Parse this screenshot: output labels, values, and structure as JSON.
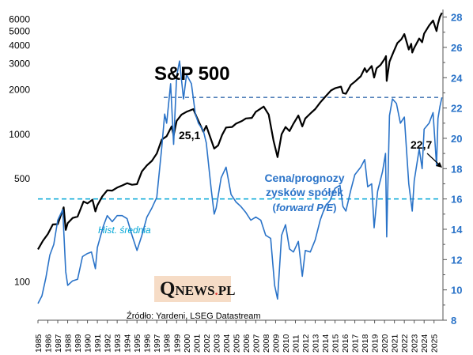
{
  "chart_data": {
    "type": "line",
    "title": "S&P 500",
    "source": "Źródło: Yardeni, LSEG Datastream",
    "logo": {
      "q": "Q",
      "rest": "NEWS",
      "dot": ".",
      "tld": "PL"
    },
    "x_ticks": [
      "1985",
      "1986",
      "1987",
      "1988",
      "1989",
      "1990",
      "1991",
      "1992",
      "1993",
      "1994",
      "1995",
      "1996",
      "1997",
      "1998",
      "1999",
      "2000",
      "2001",
      "2002",
      "2003",
      "2004",
      "2005",
      "2006",
      "2007",
      "2008",
      "2009",
      "2010",
      "2011",
      "2012",
      "2013",
      "2014",
      "2015",
      "2016",
      "2017",
      "2018",
      "2019",
      "2020",
      "2021",
      "2022",
      "2023",
      "2024",
      "2025"
    ],
    "xlim": [
      1985,
      2025.9
    ],
    "left_axis": {
      "scale": "log",
      "ticks": [
        "100",
        "500",
        "1000",
        "2000",
        "3000",
        "4000",
        "5000",
        "6000"
      ],
      "tick_values": [
        100,
        500,
        1000,
        2000,
        3000,
        4000,
        5000,
        6000
      ],
      "ylim": [
        55,
        7000
      ]
    },
    "right_axis": {
      "scale": "linear",
      "ticks": [
        "8",
        "10",
        "12",
        "14",
        "16",
        "18",
        "20",
        "22",
        "24",
        "26",
        "28"
      ],
      "tick_values": [
        8,
        10,
        12,
        14,
        16,
        18,
        20,
        22,
        24,
        26,
        28
      ],
      "ylim": [
        8,
        28.5
      ]
    },
    "series": [
      {
        "name": "S&P 500",
        "axis": "left",
        "color": "#000000",
        "points": [
          [
            1985.0,
            166
          ],
          [
            1985.5,
            190
          ],
          [
            1986.0,
            211
          ],
          [
            1986.5,
            245
          ],
          [
            1987.0,
            246
          ],
          [
            1987.6,
            320
          ],
          [
            1987.8,
            225
          ],
          [
            1988.0,
            250
          ],
          [
            1988.5,
            271
          ],
          [
            1989.0,
            277
          ],
          [
            1989.6,
            350
          ],
          [
            1990.0,
            340
          ],
          [
            1990.5,
            360
          ],
          [
            1990.8,
            300
          ],
          [
            1991.0,
            330
          ],
          [
            1991.5,
            380
          ],
          [
            1992.0,
            417
          ],
          [
            1992.5,
            415
          ],
          [
            1993.0,
            435
          ],
          [
            1993.5,
            450
          ],
          [
            1994.0,
            466
          ],
          [
            1994.5,
            455
          ],
          [
            1995.0,
            459
          ],
          [
            1995.5,
            560
          ],
          [
            1996.0,
            615
          ],
          [
            1996.5,
            660
          ],
          [
            1997.0,
            740
          ],
          [
            1997.5,
            920
          ],
          [
            1998.0,
            970
          ],
          [
            1998.5,
            1130
          ],
          [
            1998.7,
            980
          ],
          [
            1999.0,
            1230
          ],
          [
            1999.5,
            1360
          ],
          [
            2000.0,
            1420
          ],
          [
            2000.7,
            1480
          ],
          [
            2001.0,
            1320
          ],
          [
            2001.7,
            1040
          ],
          [
            2002.0,
            1140
          ],
          [
            2002.8,
            800
          ],
          [
            2003.2,
            840
          ],
          [
            2003.6,
            990
          ],
          [
            2004.0,
            1110
          ],
          [
            2004.6,
            1120
          ],
          [
            2005.0,
            1180
          ],
          [
            2005.6,
            1230
          ],
          [
            2006.0,
            1280
          ],
          [
            2006.6,
            1290
          ],
          [
            2007.0,
            1420
          ],
          [
            2007.8,
            1540
          ],
          [
            2008.3,
            1360
          ],
          [
            2008.8,
            900
          ],
          [
            2009.2,
            700
          ],
          [
            2009.6,
            1000
          ],
          [
            2010.0,
            1120
          ],
          [
            2010.4,
            1050
          ],
          [
            2010.8,
            1180
          ],
          [
            2011.3,
            1340
          ],
          [
            2011.7,
            1130
          ],
          [
            2012.0,
            1280
          ],
          [
            2012.6,
            1400
          ],
          [
            2013.0,
            1480
          ],
          [
            2013.5,
            1640
          ],
          [
            2014.0,
            1790
          ],
          [
            2014.6,
            1980
          ],
          [
            2015.0,
            2050
          ],
          [
            2015.6,
            2100
          ],
          [
            2015.8,
            1900
          ],
          [
            2016.1,
            1880
          ],
          [
            2016.6,
            2160
          ],
          [
            2017.0,
            2270
          ],
          [
            2017.6,
            2470
          ],
          [
            2018.0,
            2800
          ],
          [
            2018.2,
            2640
          ],
          [
            2018.7,
            2900
          ],
          [
            2018.95,
            2420
          ],
          [
            2019.2,
            2800
          ],
          [
            2019.6,
            2950
          ],
          [
            2020.0,
            3230
          ],
          [
            2020.15,
            3380
          ],
          [
            2020.22,
            2300
          ],
          [
            2020.5,
            3100
          ],
          [
            2020.9,
            3600
          ],
          [
            2021.3,
            4150
          ],
          [
            2021.7,
            4400
          ],
          [
            2022.0,
            4770
          ],
          [
            2022.45,
            3750
          ],
          [
            2022.7,
            4100
          ],
          [
            2022.8,
            3580
          ],
          [
            2023.0,
            3850
          ],
          [
            2023.5,
            4450
          ],
          [
            2023.8,
            4200
          ],
          [
            2024.0,
            4800
          ],
          [
            2024.5,
            5450
          ],
          [
            2024.9,
            5900
          ],
          [
            2025.25,
            5000
          ],
          [
            2025.4,
            5600
          ],
          [
            2025.6,
            6250
          ],
          [
            2025.8,
            6650
          ]
        ]
      },
      {
        "name": "Cena/prognozy zysków spółek (forward P/E)",
        "axis": "right",
        "color": "#2a73c8",
        "points": [
          [
            1985.0,
            9.1
          ],
          [
            1985.4,
            9.6
          ],
          [
            1985.8,
            10.8
          ],
          [
            1986.2,
            12.3
          ],
          [
            1986.6,
            13.0
          ],
          [
            1987.0,
            14.6
          ],
          [
            1987.5,
            15.3
          ],
          [
            1987.8,
            11.2
          ],
          [
            1988.0,
            10.3
          ],
          [
            1988.5,
            10.6
          ],
          [
            1989.0,
            10.7
          ],
          [
            1989.5,
            12.2
          ],
          [
            1990.0,
            12.4
          ],
          [
            1990.4,
            12.5
          ],
          [
            1990.8,
            11.4
          ],
          [
            1991.0,
            12.8
          ],
          [
            1991.6,
            14.2
          ],
          [
            1992.0,
            14.9
          ],
          [
            1992.5,
            14.5
          ],
          [
            1993.0,
            14.9
          ],
          [
            1993.5,
            14.9
          ],
          [
            1994.0,
            14.7
          ],
          [
            1994.5,
            13.6
          ],
          [
            1995.0,
            12.6
          ],
          [
            1995.5,
            13.6
          ],
          [
            1996.0,
            14.8
          ],
          [
            1996.5,
            15.4
          ],
          [
            1997.0,
            16.1
          ],
          [
            1997.5,
            19.4
          ],
          [
            1997.8,
            21.6
          ],
          [
            1998.0,
            21.0
          ],
          [
            1998.4,
            23.6
          ],
          [
            1998.7,
            19.6
          ],
          [
            1999.0,
            24.1
          ],
          [
            1999.3,
            25.1
          ],
          [
            1999.7,
            22.6
          ],
          [
            2000.0,
            24.2
          ],
          [
            2000.5,
            23.6
          ],
          [
            2000.9,
            21.6
          ],
          [
            2001.2,
            21.0
          ],
          [
            2001.7,
            20.5
          ],
          [
            2002.0,
            19.7
          ],
          [
            2002.5,
            16.6
          ],
          [
            2002.8,
            15.0
          ],
          [
            2003.0,
            15.4
          ],
          [
            2003.5,
            17.4
          ],
          [
            2004.0,
            18.1
          ],
          [
            2004.5,
            16.3
          ],
          [
            2005.0,
            15.8
          ],
          [
            2005.5,
            15.5
          ],
          [
            2006.0,
            15.1
          ],
          [
            2006.5,
            14.6
          ],
          [
            2007.0,
            14.8
          ],
          [
            2007.5,
            14.6
          ],
          [
            2008.0,
            13.6
          ],
          [
            2008.5,
            13.4
          ],
          [
            2008.9,
            10.3
          ],
          [
            2009.2,
            9.4
          ],
          [
            2009.6,
            13.6
          ],
          [
            2010.0,
            14.3
          ],
          [
            2010.4,
            12.7
          ],
          [
            2010.8,
            12.5
          ],
          [
            2011.3,
            13.2
          ],
          [
            2011.7,
            10.9
          ],
          [
            2012.0,
            12.6
          ],
          [
            2012.5,
            12.5
          ],
          [
            2013.0,
            13.3
          ],
          [
            2013.5,
            14.6
          ],
          [
            2014.0,
            15.5
          ],
          [
            2014.5,
            15.9
          ],
          [
            2015.0,
            16.7
          ],
          [
            2015.5,
            16.9
          ],
          [
            2015.8,
            15.5
          ],
          [
            2016.1,
            15.2
          ],
          [
            2016.6,
            16.6
          ],
          [
            2017.0,
            17.6
          ],
          [
            2017.6,
            18.1
          ],
          [
            2018.0,
            18.6
          ],
          [
            2018.3,
            16.8
          ],
          [
            2018.7,
            17.0
          ],
          [
            2018.95,
            14.1
          ],
          [
            2019.3,
            16.5
          ],
          [
            2019.8,
            17.8
          ],
          [
            2020.1,
            19.0
          ],
          [
            2020.22,
            13.5
          ],
          [
            2020.5,
            21.5
          ],
          [
            2020.8,
            22.6
          ],
          [
            2021.2,
            22.3
          ],
          [
            2021.6,
            21.0
          ],
          [
            2022.0,
            21.4
          ],
          [
            2022.45,
            17.0
          ],
          [
            2022.8,
            15.2
          ],
          [
            2023.0,
            17.2
          ],
          [
            2023.5,
            19.3
          ],
          [
            2023.8,
            18.0
          ],
          [
            2024.0,
            20.6
          ],
          [
            2024.5,
            21.0
          ],
          [
            2024.9,
            21.7
          ],
          [
            2025.25,
            18.2
          ],
          [
            2025.4,
            21.3
          ],
          [
            2025.6,
            22.1
          ],
          [
            2025.8,
            22.7
          ]
        ]
      }
    ],
    "reference_lines": [
      {
        "label": "Hist. średnia",
        "value": 16,
        "axis": "right",
        "color": "#00a6d6",
        "style": "dashed"
      },
      {
        "label": "",
        "value": 22.7,
        "axis": "right",
        "color": "#3a6fb0",
        "style": "dashed"
      }
    ],
    "annotations": {
      "peak_label": "25,1",
      "last_label": "22,7",
      "series_label_lines": [
        "Cena/prognozy",
        "zysków spółek"
      ],
      "series_label_paren_open": "(",
      "series_label_italic": "forward P/E",
      "series_label_paren_close": ")",
      "hist_label": "Hist. średnia"
    },
    "colors": {
      "pe_text": "#2a73c8",
      "hist": "#00a6d6",
      "logo_bg": "#f6dcc6",
      "logo_dot": "#e53935"
    },
    "grid": false
  }
}
